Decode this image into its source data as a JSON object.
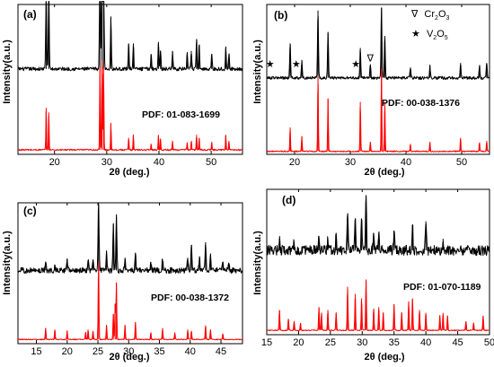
{
  "chart_data": [
    {
      "type": "line",
      "panel_label": "(a)",
      "xlabel": "2θ (deg.)",
      "ylabel": "Intensity(a.u.)",
      "xlim": [
        13,
        56
      ],
      "xticks": [
        20,
        30,
        40,
        50
      ],
      "reference_label": "PDF: 01-083-1699",
      "series": [
        {
          "role": "sample",
          "color": "#000000",
          "baseline": 0.57,
          "noise": 0.012,
          "x": [
            18.4,
            18.9,
            28.7,
            29.1,
            29.4,
            30.8,
            34.2,
            35.1,
            38.5,
            39.9,
            40.3,
            42.6,
            45.4,
            46.2,
            47.2,
            47.7,
            50.1,
            52.8,
            53.4
          ],
          "y": [
            0.55,
            0.55,
            0.95,
            1.0,
            0.95,
            0.35,
            0.17,
            0.17,
            0.1,
            0.18,
            0.12,
            0.12,
            0.1,
            0.12,
            0.2,
            0.16,
            0.1,
            0.15,
            0.1
          ]
        },
        {
          "role": "reference",
          "color": "#ff0000",
          "baseline": 0.03,
          "noise": 0.005,
          "x": [
            18.4,
            18.9,
            28.7,
            29.1,
            29.4,
            30.8,
            34.2,
            35.1,
            38.5,
            39.9,
            40.3,
            42.6,
            45.4,
            46.2,
            47.2,
            47.7,
            50.1,
            52.8,
            53.4
          ],
          "y": [
            0.28,
            0.25,
            0.55,
            0.6,
            0.55,
            0.18,
            0.08,
            0.1,
            0.04,
            0.1,
            0.07,
            0.06,
            0.05,
            0.06,
            0.1,
            0.08,
            0.05,
            0.1,
            0.06
          ]
        }
      ]
    },
    {
      "type": "line",
      "panel_label": "(b)",
      "xlabel": "2θ (deg.)",
      "ylabel": "Intensity(a.u.)",
      "xlim": [
        15,
        55
      ],
      "xticks": [
        20,
        30,
        40,
        50
      ],
      "reference_label": "PDF: 00-038-1376",
      "legend": [
        {
          "symbol": "∇",
          "text": "Cr",
          "sub": "2",
          "text2": "O",
          "sub2": "3"
        },
        {
          "symbol": "★",
          "text": "V",
          "sub": "2",
          "text2": "O",
          "sub2": "5"
        }
      ],
      "markers": [
        {
          "symbol": "★",
          "x": 15.6,
          "y": 0.58
        },
        {
          "symbol": "★",
          "x": 20.3,
          "y": 0.58
        },
        {
          "symbol": "★",
          "x": 31.0,
          "y": 0.58
        },
        {
          "symbol": "∇",
          "x": 33.6,
          "y": 0.62
        }
      ],
      "series": [
        {
          "role": "sample",
          "color": "#000000",
          "baseline": 0.51,
          "noise": 0.01,
          "x": [
            19.2,
            21.3,
            24.2,
            26.0,
            31.8,
            33.6,
            35.6,
            36.2,
            40.8,
            44.3,
            49.8,
            53.2,
            54.5
          ],
          "y": [
            0.23,
            0.12,
            0.45,
            0.3,
            0.2,
            0.09,
            0.47,
            0.28,
            0.07,
            0.08,
            0.1,
            0.08,
            0.1
          ]
        },
        {
          "role": "reference",
          "color": "#ff0000",
          "baseline": 0.02,
          "noise": 0.004,
          "x": [
            19.2,
            21.3,
            24.2,
            26.0,
            31.8,
            33.6,
            35.6,
            36.2,
            40.8,
            44.3,
            49.8,
            53.2,
            54.5
          ],
          "y": [
            0.16,
            0.1,
            0.5,
            0.35,
            0.33,
            0.06,
            0.55,
            0.33,
            0.05,
            0.06,
            0.09,
            0.06,
            0.07
          ]
        }
      ]
    },
    {
      "type": "line",
      "panel_label": "(c)",
      "xlabel": "2θ (deg.)",
      "ylabel": "Intensity(a.u.)",
      "xlim": [
        12,
        48.5
      ],
      "xticks": [
        15,
        20,
        25,
        30,
        35,
        40,
        45
      ],
      "reference_label": "PDF: 00-038-1372",
      "series": [
        {
          "role": "sample",
          "color": "#000000",
          "baseline": 0.52,
          "noise": 0.02,
          "x": [
            16.5,
            18.0,
            20.0,
            23.4,
            24.2,
            25.1,
            26.4,
            27.5,
            28.0,
            29.4,
            31.1,
            33.6,
            35.5,
            39.6,
            40.2,
            41.5,
            42.5,
            43.3,
            45.3,
            46.3
          ],
          "y": [
            0.05,
            0.04,
            0.08,
            0.07,
            0.06,
            0.48,
            0.12,
            0.33,
            0.38,
            0.08,
            0.12,
            0.06,
            0.08,
            0.09,
            0.18,
            0.1,
            0.2,
            0.12,
            0.06,
            0.05
          ]
        },
        {
          "role": "reference",
          "color": "#ff0000",
          "baseline": 0.03,
          "noise": 0.003,
          "x": [
            16.5,
            18.0,
            20.0,
            23.0,
            23.4,
            24.2,
            25.1,
            26.4,
            27.5,
            27.8,
            28.0,
            29.4,
            31.1,
            33.6,
            35.5,
            37.5,
            39.6,
            40.2,
            42.5,
            43.3,
            45.3
          ],
          "y": [
            0.08,
            0.07,
            0.06,
            0.05,
            0.07,
            0.06,
            0.55,
            0.1,
            0.18,
            0.25,
            0.4,
            0.1,
            0.12,
            0.05,
            0.08,
            0.05,
            0.07,
            0.06,
            0.1,
            0.07,
            0.04
          ]
        }
      ]
    },
    {
      "type": "line",
      "panel_label": "(d)",
      "xlabel": "2θ (deg.)",
      "ylabel": "Intensity(a.u.)",
      "xlim": [
        15,
        50
      ],
      "xticks": [
        15,
        20,
        25,
        30,
        35,
        40,
        45,
        50
      ],
      "reference_label": "PDF: 01-070-1189",
      "series": [
        {
          "role": "sample",
          "color": "#000000",
          "baseline": 0.58,
          "noise": 0.035,
          "x": [
            17.0,
            19.3,
            23.2,
            24.6,
            25.9,
            27.7,
            28.9,
            29.9,
            30.6,
            31.8,
            32.6,
            35.0,
            37.9,
            40.0,
            42.7
          ],
          "y": [
            0.08,
            0.06,
            0.1,
            0.08,
            0.1,
            0.25,
            0.22,
            0.2,
            0.38,
            0.12,
            0.12,
            0.13,
            0.18,
            0.2,
            0.08
          ]
        },
        {
          "role": "reference",
          "color": "#ff0000",
          "baseline": 0.03,
          "noise": 0.003,
          "x": [
            17.0,
            18.4,
            19.3,
            20.3,
            23.2,
            23.6,
            24.6,
            25.9,
            27.7,
            28.9,
            29.9,
            30.6,
            31.8,
            32.6,
            33.3,
            35.0,
            36.2,
            37.3,
            37.9,
            39.0,
            40.0,
            42.2,
            42.7,
            43.4,
            46.3,
            47.5,
            49.0
          ],
          "y": [
            0.14,
            0.08,
            0.06,
            0.05,
            0.16,
            0.12,
            0.14,
            0.12,
            0.3,
            0.25,
            0.22,
            0.35,
            0.15,
            0.16,
            0.12,
            0.18,
            0.12,
            0.2,
            0.22,
            0.14,
            0.12,
            0.1,
            0.12,
            0.1,
            0.06,
            0.05,
            0.1
          ]
        }
      ]
    }
  ]
}
